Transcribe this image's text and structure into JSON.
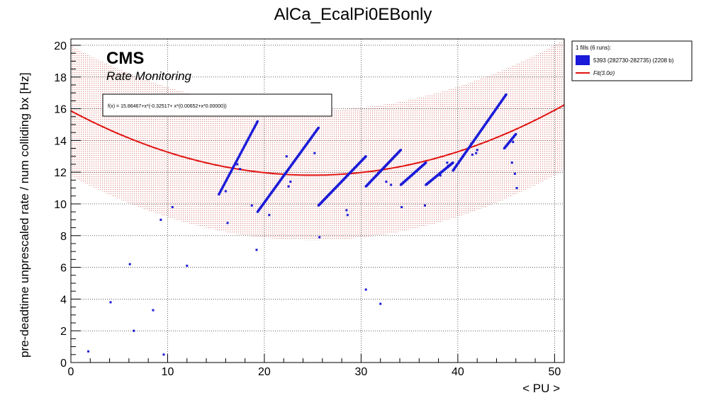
{
  "chart_data": {
    "type": "scatter",
    "title": "AlCa_EcalPi0EBonly",
    "xlabel": "< PU >",
    "ylabel": "pre-deadtime unprescaled rate / num colliding bx [Hz]",
    "xlim": [
      0,
      51
    ],
    "ylim": [
      0,
      20.4
    ],
    "x_ticks": [
      0,
      10,
      20,
      30,
      40,
      50
    ],
    "y_ticks": [
      0,
      2,
      4,
      6,
      8,
      10,
      12,
      14,
      16,
      18,
      20
    ],
    "grid": true,
    "legend_position": "top-right",
    "legend_header": "1 fills (6 runs):",
    "branding": {
      "experiment": "CMS",
      "subtitle": "Rate Monitoring"
    },
    "fit": {
      "label": "Fit(3.0σ)",
      "formula_text": "f(x) = 15.86467+x*(-0.32517+ x*(0.00652+x*0.00000))",
      "coefficients": [
        15.86467,
        -0.32517,
        0.00652,
        0.0
      ],
      "band_sigma": 3.0,
      "band_halfwidth": 4.1,
      "color": "#e0120f"
    },
    "band_color": "#c0302a",
    "series": [
      {
        "name": "5393 (282730-282735) (2208 b)",
        "color": "#1a1ad8",
        "segments": [
          [
            [
              15.3,
              10.6
            ],
            [
              19.3,
              15.2
            ]
          ],
          [
            [
              19.3,
              9.5
            ],
            [
              25.6,
              14.8
            ]
          ],
          [
            [
              25.6,
              9.9
            ],
            [
              30.5,
              13.0
            ]
          ],
          [
            [
              30.5,
              11.1
            ],
            [
              34.1,
              13.4
            ]
          ],
          [
            [
              34.1,
              11.2
            ],
            [
              36.7,
              12.6
            ]
          ],
          [
            [
              36.7,
              11.2
            ],
            [
              39.5,
              12.6
            ]
          ],
          [
            [
              39.5,
              12.1
            ],
            [
              45.0,
              16.9
            ]
          ],
          [
            [
              44.8,
              13.5
            ],
            [
              46.0,
              14.4
            ]
          ]
        ],
        "points": [
          [
            1.8,
            0.7
          ],
          [
            4.1,
            3.8
          ],
          [
            6.1,
            6.2
          ],
          [
            6.5,
            2.0
          ],
          [
            8.5,
            3.3
          ],
          [
            9.3,
            9.0
          ],
          [
            9.6,
            0.5
          ],
          [
            10.5,
            9.8
          ],
          [
            12.0,
            6.1
          ],
          [
            16.0,
            10.8
          ],
          [
            16.2,
            8.8
          ],
          [
            17.2,
            12.5
          ],
          [
            17.5,
            12.2
          ],
          [
            18.7,
            9.9
          ],
          [
            19.2,
            7.1
          ],
          [
            20.5,
            9.3
          ],
          [
            22.3,
            13.0
          ],
          [
            22.5,
            11.1
          ],
          [
            22.7,
            11.4
          ],
          [
            25.2,
            13.2
          ],
          [
            25.7,
            7.9
          ],
          [
            28.5,
            9.6
          ],
          [
            28.6,
            9.3
          ],
          [
            30.5,
            4.6
          ],
          [
            32.0,
            3.7
          ],
          [
            32.6,
            11.4
          ],
          [
            33.1,
            11.2
          ],
          [
            34.2,
            9.8
          ],
          [
            36.6,
            9.9
          ],
          [
            38.2,
            11.8
          ],
          [
            38.9,
            12.6
          ],
          [
            39.0,
            12.4
          ],
          [
            41.4,
            13.8
          ],
          [
            41.5,
            13.1
          ],
          [
            41.9,
            13.2
          ],
          [
            42.0,
            13.4
          ],
          [
            45.6,
            12.6
          ],
          [
            45.9,
            11.9
          ],
          [
            46.1,
            11.0
          ],
          [
            45.7,
            13.9
          ]
        ]
      }
    ]
  }
}
